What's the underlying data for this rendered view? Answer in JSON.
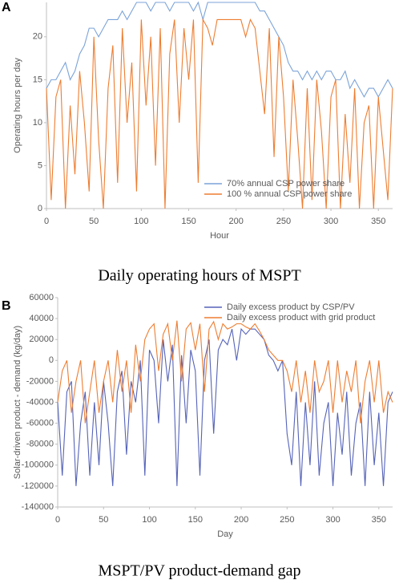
{
  "chart_data": [
    {
      "type": "line",
      "panel_label": "A",
      "caption": "Daily operating hours of MSPT",
      "xlabel": "Hour",
      "ylabel": "Operating hours per day",
      "xlim": [
        0,
        365
      ],
      "xticks": [
        0,
        50,
        100,
        150,
        200,
        250,
        300,
        350
      ],
      "ylim": [
        0,
        24
      ],
      "yticks": [
        0,
        5,
        10,
        15,
        20
      ],
      "grid": false,
      "legend": "lower right",
      "x": [
        0,
        5,
        10,
        15,
        20,
        25,
        30,
        35,
        40,
        45,
        50,
        55,
        60,
        65,
        70,
        75,
        80,
        85,
        90,
        95,
        100,
        105,
        110,
        115,
        120,
        125,
        130,
        135,
        140,
        145,
        150,
        155,
        160,
        165,
        170,
        175,
        180,
        185,
        190,
        195,
        200,
        205,
        210,
        215,
        220,
        225,
        230,
        235,
        240,
        245,
        250,
        255,
        260,
        265,
        270,
        275,
        280,
        285,
        290,
        295,
        300,
        305,
        310,
        315,
        320,
        325,
        330,
        335,
        340,
        345,
        350,
        355,
        360,
        365
      ],
      "series": [
        {
          "name": "70% annual CSP power share",
          "color": "#7ba3d8",
          "values": [
            14,
            15,
            15,
            16,
            17,
            15,
            16,
            18,
            19,
            21,
            21,
            20,
            21,
            22,
            22,
            22,
            23,
            22,
            23,
            24,
            24,
            24,
            23,
            24,
            24,
            24,
            23,
            24,
            24,
            24,
            24,
            23,
            24,
            22,
            24,
            24,
            24,
            24,
            24,
            24,
            24,
            24,
            24,
            24,
            24,
            23,
            23,
            22,
            21,
            20,
            19,
            17,
            16,
            16,
            15,
            16,
            15,
            16,
            15,
            16,
            16,
            15,
            15,
            16,
            14,
            15,
            14,
            13,
            14,
            14,
            13,
            14,
            15,
            14
          ]
        },
        {
          "name": "100 % annual CSP power share",
          "color": "#ed7d31",
          "values": [
            14,
            1,
            13,
            15,
            0,
            12,
            4,
            16,
            10,
            2,
            20,
            8,
            0,
            14,
            19,
            3,
            21,
            10,
            17,
            2,
            22,
            12,
            20,
            5,
            21,
            0,
            18,
            22,
            10,
            21,
            15,
            22,
            3,
            22,
            21,
            19,
            22,
            22,
            22,
            22,
            22,
            22,
            20,
            22,
            21,
            16,
            11,
            21,
            6,
            20,
            13,
            2,
            15,
            8,
            0,
            14,
            1,
            15,
            9,
            0,
            13,
            15,
            0,
            11,
            3,
            14,
            0,
            10,
            12,
            0,
            13,
            7,
            1,
            14
          ]
        }
      ]
    },
    {
      "type": "line",
      "panel_label": "B",
      "caption": "MSPT/PV product-demand gap",
      "xlabel": "Day",
      "ylabel": "Solar-driven product - demand (kg/day)",
      "xlim": [
        0,
        365
      ],
      "xticks": [
        0,
        50,
        100,
        150,
        200,
        250,
        300,
        350
      ],
      "ylim": [
        -140000,
        60000
      ],
      "yticks": [
        -140000,
        -120000,
        -100000,
        -80000,
        -60000,
        -40000,
        -20000,
        0,
        20000,
        40000,
        60000
      ],
      "grid": false,
      "legend": "upper right",
      "x": [
        0,
        5,
        10,
        15,
        20,
        25,
        30,
        35,
        40,
        45,
        50,
        55,
        60,
        65,
        70,
        75,
        80,
        85,
        90,
        95,
        100,
        105,
        110,
        115,
        120,
        125,
        130,
        135,
        140,
        145,
        150,
        155,
        160,
        165,
        170,
        175,
        180,
        185,
        190,
        195,
        200,
        205,
        210,
        215,
        220,
        225,
        230,
        235,
        240,
        245,
        250,
        255,
        260,
        265,
        270,
        275,
        280,
        285,
        290,
        295,
        300,
        305,
        310,
        315,
        320,
        325,
        330,
        335,
        340,
        345,
        350,
        355,
        360,
        365
      ],
      "series": [
        {
          "name": "Daily excess product by CSP/PV",
          "color": "#5563b8",
          "values": [
            -40000,
            -110000,
            -30000,
            -20000,
            -120000,
            -60000,
            -30000,
            -110000,
            -40000,
            -100000,
            -20000,
            -60000,
            -120000,
            -30000,
            -10000,
            -90000,
            -20000,
            -40000,
            0,
            -110000,
            10000,
            0,
            -60000,
            20000,
            -20000,
            15000,
            -120000,
            5000,
            -60000,
            10000,
            -10000,
            -110000,
            0,
            20000,
            -70000,
            10000,
            20000,
            15000,
            30000,
            0,
            30000,
            25000,
            30000,
            30000,
            25000,
            20000,
            5000,
            0,
            -10000,
            0,
            -70000,
            -100000,
            -30000,
            -120000,
            -40000,
            -100000,
            -20000,
            -110000,
            -60000,
            -40000,
            -120000,
            -50000,
            -90000,
            -30000,
            -110000,
            -60000,
            -40000,
            -120000,
            -30000,
            -100000,
            -50000,
            -120000,
            -40000,
            -30000
          ]
        },
        {
          "name": "Daily excess product with grid product",
          "color": "#ed7d31",
          "values": [
            -40000,
            -10000,
            0,
            -50000,
            -20000,
            0,
            -60000,
            -30000,
            0,
            -50000,
            -20000,
            0,
            -40000,
            10000,
            -30000,
            0,
            -50000,
            15000,
            -20000,
            20000,
            30000,
            35000,
            -10000,
            25000,
            35000,
            0,
            38000,
            -20000,
            30000,
            36000,
            10000,
            35000,
            -30000,
            30000,
            37000,
            20000,
            35000,
            30000,
            32000,
            35000,
            35000,
            32000,
            30000,
            35000,
            28000,
            20000,
            10000,
            5000,
            0,
            0,
            -10000,
            -30000,
            0,
            -40000,
            -10000,
            -50000,
            0,
            -30000,
            -20000,
            0,
            -50000,
            0,
            -40000,
            -10000,
            -30000,
            0,
            -60000,
            -20000,
            0,
            -40000,
            0,
            -50000,
            -30000,
            -40000
          ]
        }
      ]
    }
  ]
}
